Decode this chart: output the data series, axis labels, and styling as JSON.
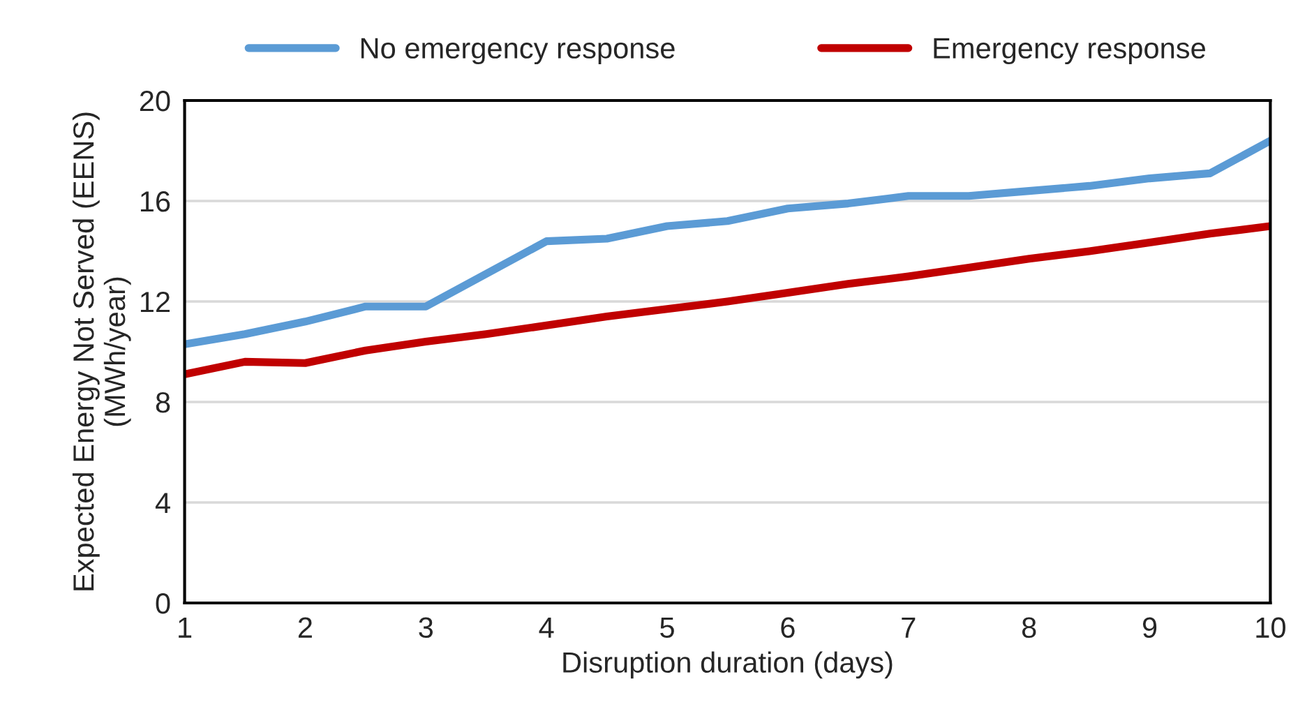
{
  "chart_data": {
    "type": "line",
    "xlabel": "Disruption duration (days)",
    "ylabel": "Expected Energy Not Served (EENS)\n(MWh/year)",
    "x": [
      1,
      1.5,
      2,
      2.5,
      3,
      3.5,
      4,
      4.5,
      5,
      5.5,
      6,
      6.5,
      7,
      7.5,
      8,
      8.5,
      9,
      9.5,
      10
    ],
    "series": [
      {
        "name": "No emergency response",
        "color": "#5b9bd5",
        "values": [
          10.3,
          10.7,
          11.2,
          11.8,
          11.8,
          13.1,
          14.4,
          14.5,
          15.0,
          15.2,
          15.7,
          15.9,
          16.2,
          16.2,
          16.4,
          16.6,
          16.9,
          17.1,
          18.4
        ]
      },
      {
        "name": "Emergency response",
        "color": "#c00000",
        "values": [
          9.1,
          9.6,
          9.55,
          10.05,
          10.4,
          10.7,
          11.05,
          11.4,
          11.7,
          12.0,
          12.35,
          12.7,
          13.0,
          13.35,
          13.7,
          14.0,
          14.35,
          14.7,
          15.0
        ]
      }
    ],
    "xlim": [
      1,
      10
    ],
    "xticks": [
      1,
      2,
      3,
      4,
      5,
      6,
      7,
      8,
      9,
      10
    ],
    "ylim": [
      0,
      20
    ],
    "yticks": [
      0,
      4,
      8,
      12,
      16,
      20
    ],
    "grid": "y",
    "legend": "top",
    "marker": "none",
    "line_style": "solid"
  }
}
